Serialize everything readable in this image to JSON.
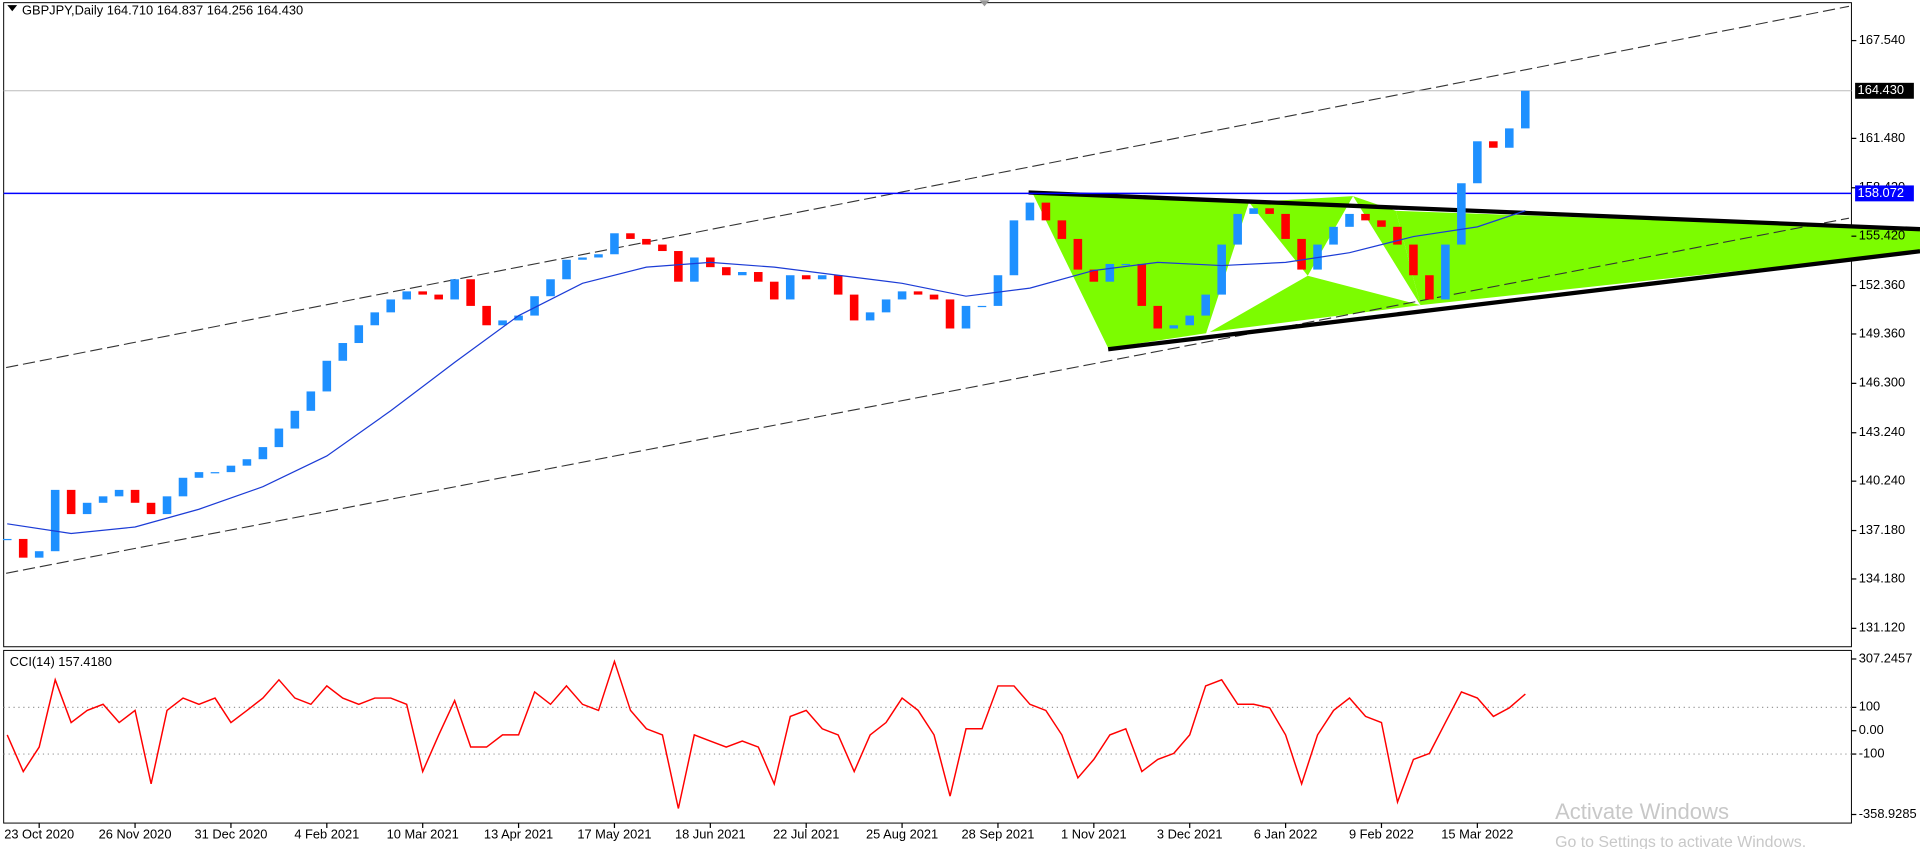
{
  "chart_data": [
    {
      "type": "candlestick",
      "header": "GBPJPY,Daily  164.710 164.837 164.256 164.430",
      "categories": [
        null,
        null,
        "23 Oct 2020",
        null,
        null,
        null,
        null,
        null,
        "26 Nov 2020",
        null,
        null,
        null,
        null,
        null,
        "31 Dec 2020",
        null,
        null,
        null,
        null,
        null,
        "4 Feb 2021",
        null,
        null,
        null,
        null,
        null,
        "10 Mar 2021",
        null,
        null,
        null,
        null,
        null,
        "13 Apr 2021",
        null,
        null,
        null,
        null,
        null,
        "17 May 2021",
        null,
        null,
        null,
        null,
        null,
        "18 Jun 2021",
        null,
        null,
        null,
        null,
        null,
        "22 Jul 2021",
        null,
        null,
        null,
        null,
        null,
        "25 Aug 2021",
        null,
        null,
        null,
        null,
        null,
        "28 Sep 2021",
        null,
        null,
        null,
        null,
        null,
        "1 Nov 2021",
        null,
        null,
        null,
        null,
        null,
        "3 Dec 2021",
        null,
        null,
        null,
        null,
        null,
        "6 Jan 2022",
        null,
        null,
        null,
        null,
        null,
        "9 Feb 2022",
        null,
        null,
        null,
        null,
        null,
        "15 Mar 2022",
        null,
        null,
        null
      ],
      "closes": [
        136.66,
        135.5,
        135.9,
        139.7,
        138.2,
        138.9,
        139.3,
        139.7,
        138.9,
        138.2,
        139.3,
        140.45,
        140.8,
        140.8,
        141.2,
        141.6,
        142.35,
        143.5,
        144.6,
        145.8,
        147.7,
        148.8,
        149.9,
        150.7,
        151.5,
        152.0,
        151.8,
        151.5,
        152.75,
        151.1,
        149.9,
        150.2,
        150.5,
        151.7,
        152.75,
        153.96,
        154.1,
        154.3,
        155.6,
        155.25,
        154.9,
        154.5,
        152.6,
        154.1,
        153.5,
        153.0,
        153.2,
        152.6,
        151.5,
        153.0,
        152.75,
        153.0,
        151.8,
        150.2,
        150.7,
        151.5,
        152.0,
        151.8,
        151.5,
        149.7,
        151.1,
        151.1,
        153.0,
        156.4,
        157.5,
        156.4,
        155.25,
        153.35,
        152.6,
        153.7,
        153.7,
        151.1,
        149.7,
        149.9,
        150.5,
        151.8,
        154.9,
        156.8,
        157.15,
        156.8,
        155.25,
        153.35,
        154.9,
        156.0,
        156.8,
        156.4,
        156.0,
        154.9,
        153.0,
        151.5,
        154.9,
        158.7,
        161.3,
        160.9,
        162.1,
        164.43
      ],
      "color_up": "#1e90ff",
      "color_down": "#ff0000",
      "ma": {
        "x": [
          0,
          4,
          8,
          12,
          16,
          20,
          24,
          28,
          32,
          36,
          40,
          44,
          48,
          52,
          56,
          60,
          64,
          68,
          72,
          76,
          80,
          84,
          88,
          92,
          95
        ],
        "values": [
          137.6,
          137.0,
          137.4,
          138.5,
          139.9,
          141.8,
          144.6,
          147.6,
          150.5,
          152.5,
          153.5,
          153.8,
          153.5,
          153.0,
          152.5,
          151.7,
          152.2,
          153.3,
          153.8,
          153.6,
          153.8,
          154.4,
          155.4,
          156.0,
          157.0
        ],
        "color": "#1c3cd6"
      },
      "ylim": [
        129.98,
        169.89
      ],
      "yticks": [
        {
          "value": 131.12,
          "label": "131.120"
        },
        {
          "value": 134.18,
          "label": "134.180"
        },
        {
          "value": 137.18,
          "label": "137.180"
        },
        {
          "value": 140.24,
          "label": "140.240"
        },
        {
          "value": 143.24,
          "label": "143.240"
        },
        {
          "value": 146.3,
          "label": "146.300"
        },
        {
          "value": 149.36,
          "label": "149.360"
        },
        {
          "value": 152.36,
          "label": "152.360"
        },
        {
          "value": 155.42,
          "label": "155.420"
        },
        {
          "value": 158.42,
          "label": "158.420"
        },
        {
          "value": 161.48,
          "label": "161.480"
        },
        {
          "value": 167.54,
          "label": "167.540"
        }
      ],
      "hline": {
        "value": 158.072,
        "label": "158.072",
        "color": "#0000ff"
      },
      "last_price": {
        "value": 164.43,
        "label": "164.430"
      }
    },
    {
      "type": "line",
      "title": "CCI(14) 157.4180",
      "values": [
        -18,
        -175,
        -70,
        218,
        35,
        87,
        113,
        35,
        87,
        -228,
        87,
        140,
        113,
        140,
        35,
        87,
        140,
        218,
        140,
        113,
        192,
        140,
        113,
        140,
        140,
        113,
        -175,
        -18,
        129,
        -70,
        -70,
        -18,
        -18,
        166,
        113,
        192,
        113,
        87,
        297,
        87,
        8,
        -18,
        -333,
        -18,
        -44,
        -70,
        -44,
        -70,
        -228,
        61,
        87,
        8,
        -18,
        -175,
        -18,
        35,
        140,
        87,
        -18,
        -280,
        8,
        8,
        192,
        192,
        113,
        87,
        -18,
        -202,
        -123,
        -18,
        8,
        -175,
        -123,
        -97,
        -18,
        192,
        218,
        113,
        113,
        98,
        -18,
        -228,
        -18,
        87,
        140,
        61,
        35,
        -306,
        -123,
        -97,
        35,
        166,
        140,
        61,
        98,
        157.418
      ],
      "color": "#ff0000",
      "ylim": [
        -358.9285,
        307.2457
      ],
      "yticks": [
        307.2457,
        100,
        {
          "value": 0,
          "label": "0.00"
        },
        -100,
        -358.9285
      ],
      "levels": [
        100,
        -100
      ]
    }
  ],
  "watermark": {
    "title": "Activate Windows",
    "subtitle": "Go to Settings to activate Windows."
  }
}
